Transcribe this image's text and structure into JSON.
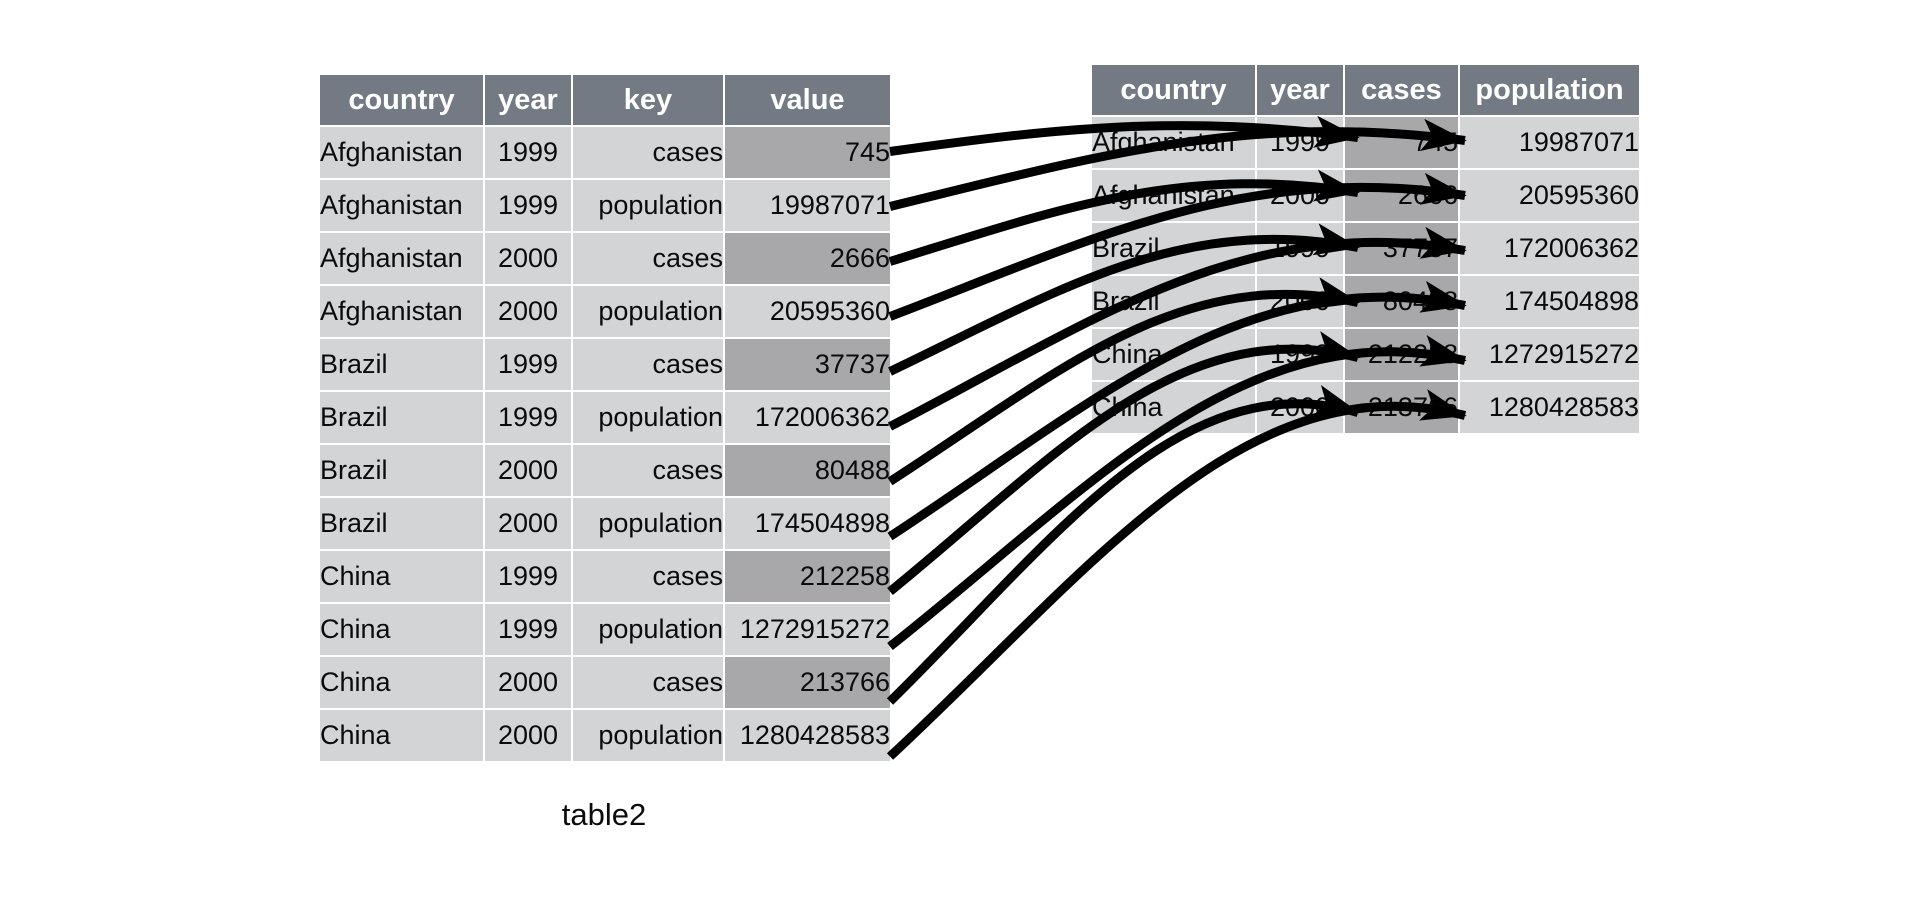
{
  "caption": "table2",
  "colors": {
    "page_bg": "#ffffff",
    "header_bg": "#747a84",
    "header_text": "#ffffff",
    "row_bg": "#d3d4d6",
    "highlight_bg": "#a8a8aa",
    "body_text": "#0b0b0b",
    "grid_line": "#ffffff",
    "arrow": "#000000"
  },
  "left_table": {
    "columns": [
      {
        "key": "country",
        "label": "country",
        "align": "left"
      },
      {
        "key": "year",
        "label": "year",
        "align": "center"
      },
      {
        "key": "key",
        "label": "key",
        "align": "right"
      },
      {
        "key": "value",
        "label": "value",
        "align": "right"
      }
    ],
    "rows": [
      {
        "country": "Afghanistan",
        "year": "1999",
        "key": "cases",
        "value": "745",
        "value_highlight": true
      },
      {
        "country": "Afghanistan",
        "year": "1999",
        "key": "population",
        "value": "19987071",
        "value_highlight": false
      },
      {
        "country": "Afghanistan",
        "year": "2000",
        "key": "cases",
        "value": "2666",
        "value_highlight": true
      },
      {
        "country": "Afghanistan",
        "year": "2000",
        "key": "population",
        "value": "20595360",
        "value_highlight": false
      },
      {
        "country": "Brazil",
        "year": "1999",
        "key": "cases",
        "value": "37737",
        "value_highlight": true
      },
      {
        "country": "Brazil",
        "year": "1999",
        "key": "population",
        "value": "172006362",
        "value_highlight": false
      },
      {
        "country": "Brazil",
        "year": "2000",
        "key": "cases",
        "value": "80488",
        "value_highlight": true
      },
      {
        "country": "Brazil",
        "year": "2000",
        "key": "population",
        "value": "174504898",
        "value_highlight": false
      },
      {
        "country": "China",
        "year": "1999",
        "key": "cases",
        "value": "212258",
        "value_highlight": true
      },
      {
        "country": "China",
        "year": "1999",
        "key": "population",
        "value": "1272915272",
        "value_highlight": false
      },
      {
        "country": "China",
        "year": "2000",
        "key": "cases",
        "value": "213766",
        "value_highlight": true
      },
      {
        "country": "China",
        "year": "2000",
        "key": "population",
        "value": "1280428583",
        "value_highlight": false
      }
    ]
  },
  "right_table": {
    "columns": [
      {
        "key": "country",
        "label": "country",
        "align": "left",
        "highlight": false
      },
      {
        "key": "year",
        "label": "year",
        "align": "center",
        "highlight": false
      },
      {
        "key": "cases",
        "label": "cases",
        "align": "right",
        "highlight": true
      },
      {
        "key": "population",
        "label": "population",
        "align": "right",
        "highlight": false
      }
    ],
    "rows": [
      {
        "country": "Afghanistan",
        "year": "1999",
        "cases": "745",
        "population": "19987071"
      },
      {
        "country": "Afghanistan",
        "year": "2000",
        "cases": "2666",
        "population": "20595360"
      },
      {
        "country": "Brazil",
        "year": "1999",
        "cases": "37737",
        "population": "172006362"
      },
      {
        "country": "Brazil",
        "year": "2000",
        "cases": "80488",
        "population": "174504898"
      },
      {
        "country": "China",
        "year": "1999",
        "cases": "212258",
        "population": "1272915272"
      },
      {
        "country": "China",
        "year": "2000",
        "cases": "213766",
        "population": "1280428583"
      }
    ]
  },
  "arrows": [
    {
      "from_row": 0,
      "to_row": 0,
      "to_col": "cases"
    },
    {
      "from_row": 1,
      "to_row": 0,
      "to_col": "population"
    },
    {
      "from_row": 2,
      "to_row": 1,
      "to_col": "cases"
    },
    {
      "from_row": 3,
      "to_row": 1,
      "to_col": "population"
    },
    {
      "from_row": 4,
      "to_row": 2,
      "to_col": "cases"
    },
    {
      "from_row": 5,
      "to_row": 2,
      "to_col": "population"
    },
    {
      "from_row": 6,
      "to_row": 3,
      "to_col": "cases"
    },
    {
      "from_row": 7,
      "to_row": 3,
      "to_col": "population"
    },
    {
      "from_row": 8,
      "to_row": 4,
      "to_col": "cases"
    },
    {
      "from_row": 9,
      "to_row": 4,
      "to_col": "population"
    },
    {
      "from_row": 10,
      "to_row": 5,
      "to_col": "cases"
    },
    {
      "from_row": 11,
      "to_row": 5,
      "to_col": "population"
    }
  ]
}
